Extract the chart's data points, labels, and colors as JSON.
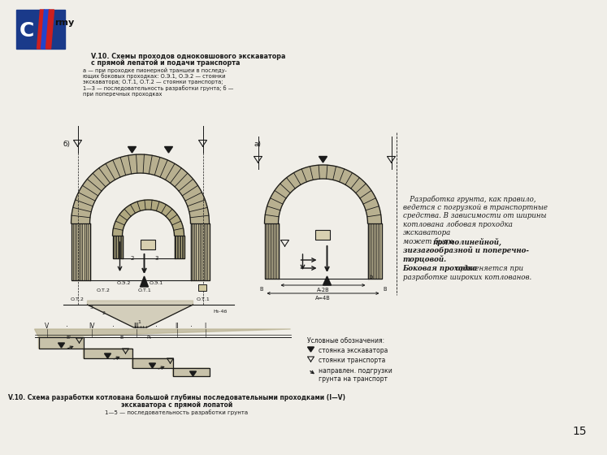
{
  "bg_color": "#f0eee8",
  "page_number": "15",
  "title_line1": "V.10. Схемы проходов одноковшового экскаватора",
  "title_line2": "с прямой лепатой и подачи транспорта",
  "caption": "а — при проходке пионерной траншеи в последу-\nющих боковых проходках: О.Э.1, О.Э.2 — стоянки\nэкскаватора; О.Т.1, О.Т.2 — стоянки транспорта;\n1—3 — последовательность разработки грунта; б —\nпри поперечных проходках",
  "label_b": "б)",
  "label_a": "а)",
  "text_p1": "   Разработка грунта, как правило,",
  "text_p2": "ведется с погрузкой в транспортные",
  "text_p3": "средства. В зависимости от ширины",
  "text_p4": "котлована лобовая проходка",
  "text_p5": "экскаватора",
  "text_p6": "может быть ",
  "text_p6b": "прямолинейной,",
  "text_p7": "зигзагообразной и поперечно-",
  "text_p8": "торцовой.",
  "text_p9": "Боковая проходка",
  "text_p9b": " применяется при",
  "text_p10": "разработке широких котлованов.",
  "leg_title": "Условные обозначения:",
  "leg1": "стоянка экскаватора",
  "leg2": "стоянки транспорта",
  "leg3a": "направлен. подгрузки",
  "leg3b": "грунта на транспорт",
  "dim_oez2": "О.Э.2",
  "dim_oez1": "О.Э.1",
  "dim_ot2": "О.Т.2",
  "dim_ot1": "О.Т.1",
  "dim_h": "Н₀-4б",
  "dim_b_prime": "В'",
  "dim_b": "В",
  "dim_p": "Р₁",
  "dim_A2B": "А-2В",
  "dim_A4B": "А=4В",
  "dim_b_small": "b",
  "bottom_line1": "V.10. Схема разработки котлована большой глубины последовательными проходками (I—V)",
  "bottom_line2": "экскаватора с прямой лопатой",
  "bottom_line3": "1—5 — последовательность разработки грунта",
  "roman_nums": [
    "V",
    "IV",
    "III",
    "II",
    "I"
  ],
  "hatch_fill": "#b8b090",
  "wall_fill": "#c0b898",
  "line_color": "#1a1a1a",
  "text_color": "#1a1a1a"
}
